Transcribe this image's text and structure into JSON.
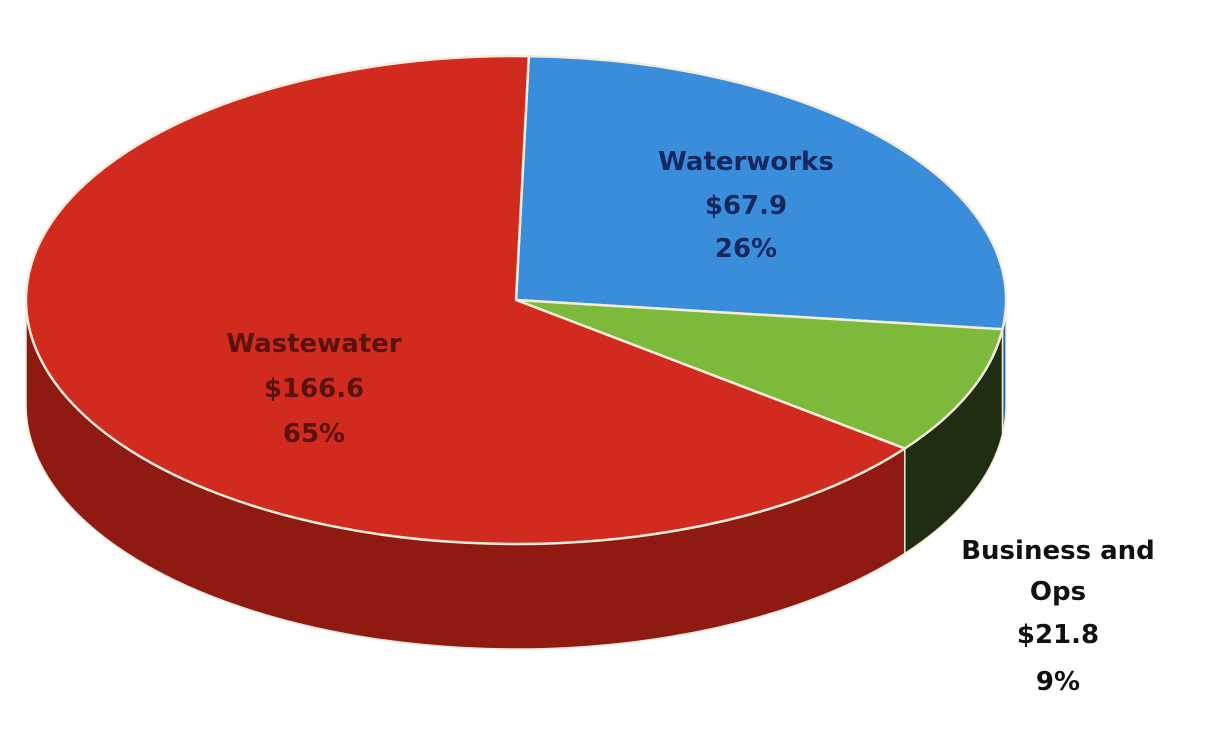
{
  "chart_data": {
    "type": "pie",
    "title": "",
    "style": "3d",
    "slices": [
      {
        "key": "wastewater",
        "name": "Wastewater",
        "value": 166.6,
        "amount_label": "$166.6",
        "percent": 65,
        "percent_label": "65%",
        "color": "#d12a1e",
        "side_color": "#8e1a12",
        "label_color": "#5a120c"
      },
      {
        "key": "waterworks",
        "name": "Waterworks",
        "value": 67.9,
        "amount_label": "$67.9",
        "percent": 26,
        "percent_label": "26%",
        "color": "#3a8ddb",
        "side_color": "#2a66a3",
        "label_color": "#14285e"
      },
      {
        "key": "business",
        "name": "Business and Ops",
        "name_lines": [
          "Business and",
          "Ops"
        ],
        "value": 21.8,
        "amount_label": "$21.8",
        "percent": 9,
        "percent_label": "9%",
        "color": "#7dba3c",
        "side_color": "#1f2d12",
        "label_color": "#111111"
      }
    ],
    "legend": "none",
    "labels": "name, amount and percent on or beside each slice"
  }
}
